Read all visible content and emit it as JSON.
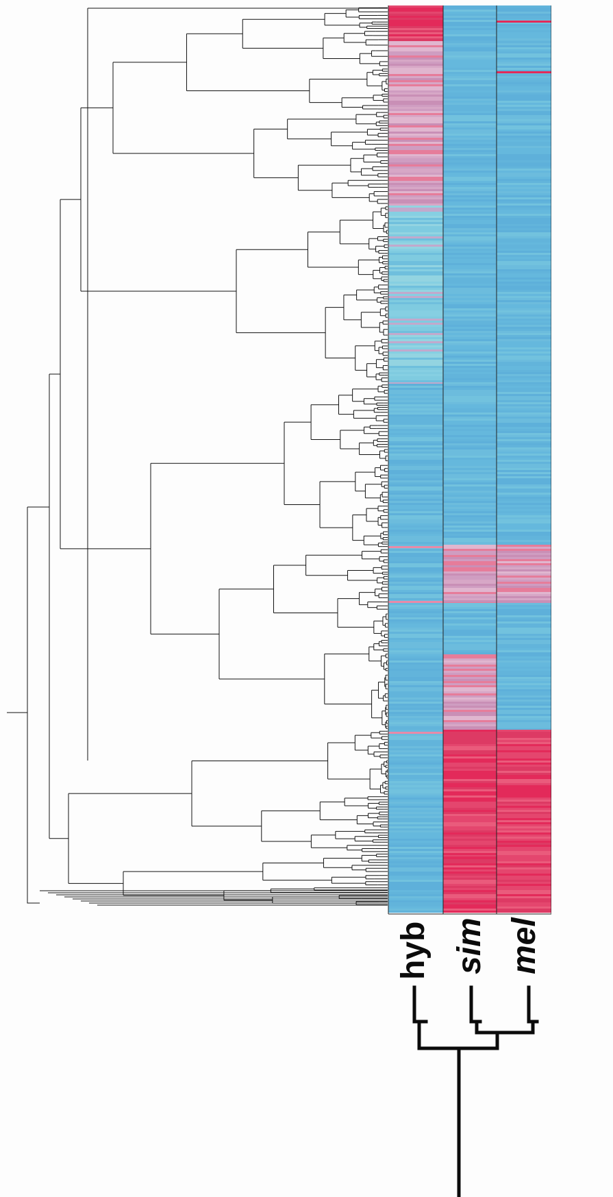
{
  "figure": {
    "kind": "clustered expression heatmap with gene dendrogram",
    "columns": [
      {
        "key": "hyb",
        "label": "hyb",
        "italic": false
      },
      {
        "key": "sim",
        "label": "sim",
        "italic": true
      },
      {
        "key": "mel",
        "label": "mel",
        "italic": true
      }
    ],
    "colors": {
      "low": "#62b4db",
      "mid_low": "#7fcbe0",
      "mid_high": "#d7a7c6",
      "high": "#e32a5a",
      "line": "#111111",
      "background": "#fdfdfd"
    },
    "species_tree": "(hyb,(sim,mel))",
    "row_profile": [
      {
        "block": 1,
        "hyb": "high",
        "sim": "low",
        "mel": "low"
      },
      {
        "block": 2,
        "hyb": "mid_high",
        "sim": "low",
        "mel": "low"
      },
      {
        "block": 3,
        "hyb": "mid_low",
        "sim": "low",
        "mel": "low"
      },
      {
        "block": 4,
        "hyb": "low",
        "sim": "low",
        "mel": "low"
      },
      {
        "block": 5,
        "hyb": "low",
        "sim": "mid_high",
        "mel": "mid_high"
      },
      {
        "block": 6,
        "hyb": "low",
        "sim": "mid_high",
        "mel": "low"
      },
      {
        "block": 7,
        "hyb": "low",
        "sim": "high",
        "mel": "high"
      }
    ]
  }
}
